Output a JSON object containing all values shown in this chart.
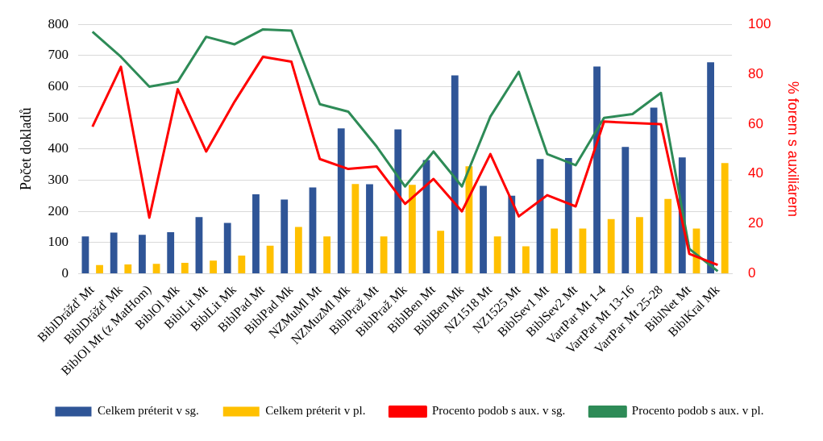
{
  "chart_data": {
    "type": "bar",
    "ylabel": "Počet dokladů",
    "y2label": "% forem s auxiliárem",
    "categories": [
      "BiblDrážď Mt",
      "BiblDrážď Mk",
      "BiblOl Mt (z MatHom)",
      "BiblOl Mk",
      "BiblLit Mt",
      "BiblLit Mk",
      "BiblPad Mt",
      "BiblPad Mk",
      "NZMuMl Mt",
      "NZMuzMl Mk",
      "BiblPraž Mt",
      "BiblPraž Mk",
      "BiblBen Mt",
      "BiblBen Mk",
      "NZ1518 Mt",
      "NZ1525 Mt",
      "BiblSev1 Mt",
      "BiblSev2 Mt",
      "VartPar Mt 1-4",
      "VartPar Mt 13-16",
      "VartPar Mt 25-28",
      "BiblNet Mt",
      "BiblKral Mk"
    ],
    "series": [
      {
        "name": "Celkem préterit v sg.",
        "color": "#2f5597",
        "values": [
          120,
          132,
          125,
          133,
          182,
          163,
          255,
          238,
          277,
          466,
          287,
          463,
          365,
          636,
          282,
          250,
          368,
          371,
          665,
          407,
          533,
          373,
          678
        ]
      },
      {
        "name": "Celkem préterit v pl.",
        "color": "#ffc000",
        "values": [
          28,
          30,
          32,
          35,
          42,
          58,
          90,
          150,
          120,
          288,
          120,
          285,
          138,
          345,
          120,
          88,
          145,
          145,
          175,
          182,
          240,
          145,
          355
        ]
      },
      {
        "name": "Procento podob s aux. v sg.",
        "color": "#ff0000",
        "type": "line",
        "axis": "y2",
        "values": [
          59,
          83,
          22.5,
          74,
          49,
          69,
          87,
          85,
          46,
          42,
          43,
          28,
          38,
          25,
          48,
          23,
          31.5,
          27,
          61,
          60.5,
          60,
          8,
          3.5
        ]
      },
      {
        "name": "Procento podob s aux. v pl.",
        "color": "#2e8b57",
        "type": "line",
        "axis": "y2",
        "values": [
          97,
          87,
          75,
          77,
          95,
          92,
          98,
          97.5,
          68,
          65,
          51,
          35,
          49,
          35,
          63,
          81,
          48,
          43.5,
          62.5,
          64,
          72.5,
          10,
          1
        ]
      }
    ],
    "ylim": [
      0,
      800
    ],
    "yticks": [
      0,
      100,
      200,
      300,
      400,
      500,
      600,
      700,
      800
    ],
    "y2lim": [
      0,
      100
    ],
    "y2ticks": [
      0,
      20,
      40,
      60,
      80,
      100
    ],
    "grid": "y",
    "legend": "bottom",
    "marker": "none"
  }
}
